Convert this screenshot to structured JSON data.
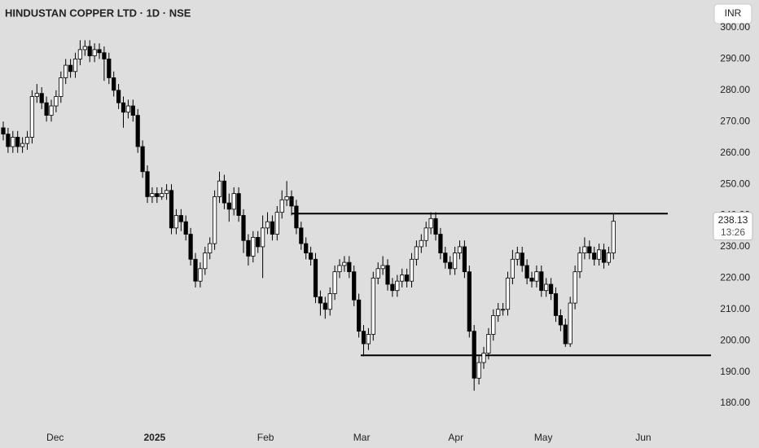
{
  "chart_data": {
    "type": "candlestick",
    "title": "HINDUSTAN COPPER LTD · 1D · NSE",
    "currency": "INR",
    "last_price": 238.13,
    "countdown": "13:26",
    "up_color": "#ffffff",
    "down_color": "#000000",
    "open": [
      268,
      266,
      262,
      265,
      262,
      263,
      265,
      278,
      279,
      276,
      272,
      275,
      278,
      284,
      288,
      286,
      290,
      293,
      294,
      291,
      293,
      292,
      290,
      284,
      280,
      276,
      273,
      275,
      272,
      262,
      254,
      246,
      247,
      246,
      247,
      248,
      236,
      240,
      238,
      234,
      226,
      219,
      223,
      228,
      231,
      246,
      251,
      244,
      242,
      247,
      240,
      232,
      227,
      233,
      230,
      236,
      238,
      234,
      241,
      245,
      246,
      243,
      236,
      231,
      228,
      226,
      214,
      212,
      210,
      215,
      222,
      224,
      225,
      222,
      213,
      203,
      199,
      202,
      220,
      223,
      224,
      218,
      216,
      219,
      221,
      219,
      226,
      230,
      232,
      236,
      239,
      234,
      228,
      225,
      223,
      228,
      230,
      222,
      203,
      188,
      193,
      196,
      202,
      208,
      210,
      210,
      220,
      226,
      228,
      224,
      220,
      219,
      222,
      216,
      218,
      215,
      208,
      205,
      199,
      212,
      222,
      228,
      230,
      228,
      226,
      229,
      225,
      228
    ],
    "high": [
      270,
      268,
      267,
      267,
      265,
      267,
      280,
      282,
      281,
      278,
      277,
      280,
      286,
      290,
      290,
      292,
      296,
      296,
      296,
      295,
      295,
      294,
      292,
      286,
      282,
      278,
      277,
      277,
      274,
      264,
      256,
      249,
      249,
      249,
      250,
      250,
      242,
      242,
      240,
      236,
      228,
      225,
      230,
      233,
      248,
      254,
      253,
      247,
      249,
      249,
      242,
      234,
      235,
      235,
      240,
      241,
      240,
      243,
      248,
      251,
      248,
      245,
      238,
      233,
      230,
      228,
      216,
      214,
      217,
      224,
      226,
      227,
      227,
      224,
      215,
      205,
      204,
      222,
      225,
      227,
      226,
      220,
      221,
      223,
      223,
      228,
      232,
      234,
      238,
      241,
      241,
      236,
      230,
      227,
      230,
      232,
      232,
      224,
      205,
      195,
      198,
      204,
      210,
      212,
      212,
      222,
      229,
      230,
      230,
      226,
      222,
      224,
      224,
      220,
      220,
      217,
      210,
      207,
      214,
      224,
      230,
      233,
      232,
      230,
      231,
      231,
      230,
      240.5
    ],
    "low": [
      264,
      260,
      260,
      260,
      260,
      261,
      263,
      276,
      274,
      270,
      270,
      273,
      276,
      282,
      284,
      284,
      288,
      291,
      289,
      289,
      290,
      283,
      282,
      278,
      274,
      268,
      271,
      270,
      260,
      252,
      244,
      244,
      244,
      245,
      245,
      234,
      234,
      235,
      232,
      224,
      217,
      217,
      221,
      226,
      229,
      244,
      242,
      238,
      240,
      238,
      228,
      224,
      225,
      228,
      220,
      234,
      232,
      232,
      239,
      243,
      240,
      234,
      229,
      226,
      224,
      212,
      208,
      207,
      208,
      213,
      220,
      222,
      220,
      211,
      201,
      195,
      197,
      200,
      218,
      221,
      216,
      214,
      214,
      217,
      217,
      217,
      224,
      228,
      230,
      234,
      232,
      226,
      223,
      221,
      221,
      226,
      220,
      201,
      184,
      186,
      191,
      194,
      200,
      206,
      208,
      208,
      218,
      224,
      222,
      218,
      217,
      217,
      214,
      214,
      213,
      206,
      203,
      198,
      198,
      210,
      220,
      226,
      226,
      224,
      224,
      223,
      224,
      226
    ],
    "close": [
      266,
      262,
      265,
      262,
      263,
      265,
      278,
      279,
      276,
      272,
      275,
      278,
      284,
      288,
      286,
      290,
      293,
      294,
      291,
      293,
      292,
      290,
      284,
      280,
      276,
      273,
      275,
      272,
      262,
      254,
      246,
      247,
      246,
      247,
      248,
      236,
      240,
      238,
      234,
      226,
      219,
      223,
      228,
      231,
      246,
      251,
      244,
      242,
      247,
      240,
      232,
      227,
      233,
      230,
      236,
      238,
      234,
      241,
      245,
      246,
      243,
      236,
      231,
      228,
      226,
      214,
      212,
      210,
      215,
      222,
      224,
      225,
      222,
      213,
      203,
      199,
      202,
      220,
      223,
      224,
      218,
      216,
      219,
      221,
      219,
      226,
      230,
      232,
      236,
      239,
      234,
      228,
      225,
      223,
      228,
      230,
      222,
      203,
      188,
      193,
      196,
      202,
      208,
      210,
      210,
      220,
      226,
      228,
      224,
      220,
      219,
      222,
      216,
      218,
      215,
      208,
      205,
      199,
      212,
      222,
      228,
      230,
      228,
      226,
      229,
      225,
      228,
      238.13
    ],
    "ylim": [
      172,
      307
    ],
    "yticks": [
      {
        "value": 180,
        "label": "180.00"
      },
      {
        "value": 190,
        "label": "190.00"
      },
      {
        "value": 200,
        "label": "200.00"
      },
      {
        "value": 210,
        "label": "210.00"
      },
      {
        "value": 220,
        "label": "220.00"
      },
      {
        "value": 230,
        "label": "230.00"
      },
      {
        "value": 240,
        "label": "240.00"
      },
      {
        "value": 250,
        "label": "250.00"
      },
      {
        "value": 260,
        "label": "260.00"
      },
      {
        "value": 270,
        "label": "270.00"
      },
      {
        "value": 280,
        "label": "280.00"
      },
      {
        "value": 290,
        "label": "290.00"
      },
      {
        "value": 300,
        "label": "300.00"
      }
    ],
    "xticks": [
      {
        "value": 10.8,
        "label": "Dec"
      },
      {
        "value": 31.5,
        "label": "2025"
      },
      {
        "value": 54.6,
        "label": "Feb"
      },
      {
        "value": 74.6,
        "label": "Mar"
      },
      {
        "value": 94.2,
        "label": "Apr"
      },
      {
        "value": 112.4,
        "label": "May"
      },
      {
        "value": 133.2,
        "label": "Jun"
      }
    ],
    "hlines": [
      {
        "value": 240.6,
        "from": 60,
        "to": 138.3
      },
      {
        "value": 195.3,
        "from": 74.4,
        "to": 147.3
      }
    ]
  }
}
